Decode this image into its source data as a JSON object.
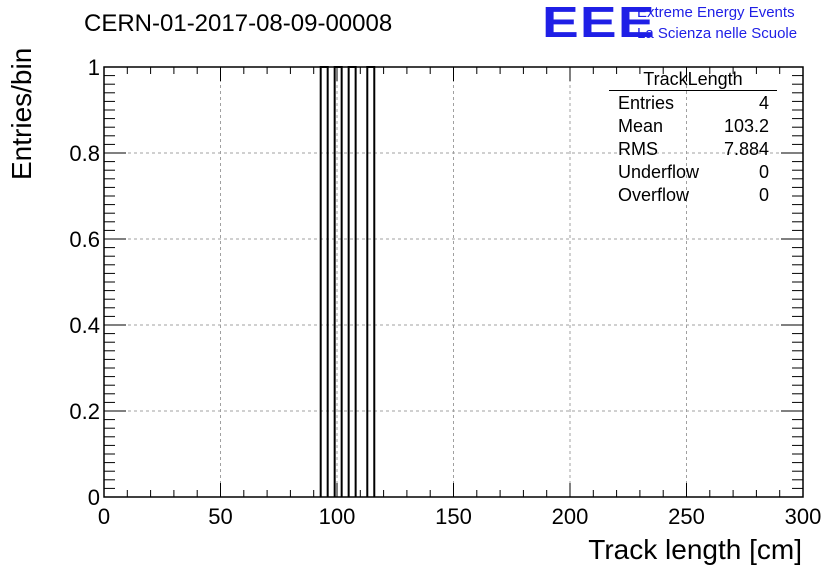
{
  "header": {
    "run_title": "CERN-01-2017-08-09-00008"
  },
  "logo": {
    "mark": "EEE",
    "line1": "Extreme Energy Events",
    "line2": "La Scienza nelle Scuole",
    "color": "#1f1fe6"
  },
  "stats": {
    "title": "TrackLength",
    "rows": [
      {
        "key": "Entries",
        "value": "4"
      },
      {
        "key": "Mean",
        "value": "103.2"
      },
      {
        "key": "RMS",
        "value": "7.884"
      },
      {
        "key": "Underflow",
        "value": "0"
      },
      {
        "key": "Overflow",
        "value": "0"
      }
    ]
  },
  "chart_data": {
    "type": "bar",
    "histogram": true,
    "xlabel": "Track length [cm]",
    "ylabel": "Entries/bin",
    "xlim": [
      0,
      300
    ],
    "ylim": [
      0,
      1
    ],
    "x_ticks": [
      "0",
      "50",
      "100",
      "150",
      "200",
      "250",
      "300"
    ],
    "y_ticks": [
      "0",
      "0.2",
      "0.4",
      "0.6",
      "0.8",
      "1"
    ],
    "grid": true,
    "bins": [
      {
        "x_low": 93,
        "x_high": 96,
        "count": 1
      },
      {
        "x_low": 99,
        "x_high": 102,
        "count": 1
      },
      {
        "x_low": 105,
        "x_high": 108,
        "count": 1
      },
      {
        "x_low": 113,
        "x_high": 116,
        "count": 1
      }
    ]
  }
}
